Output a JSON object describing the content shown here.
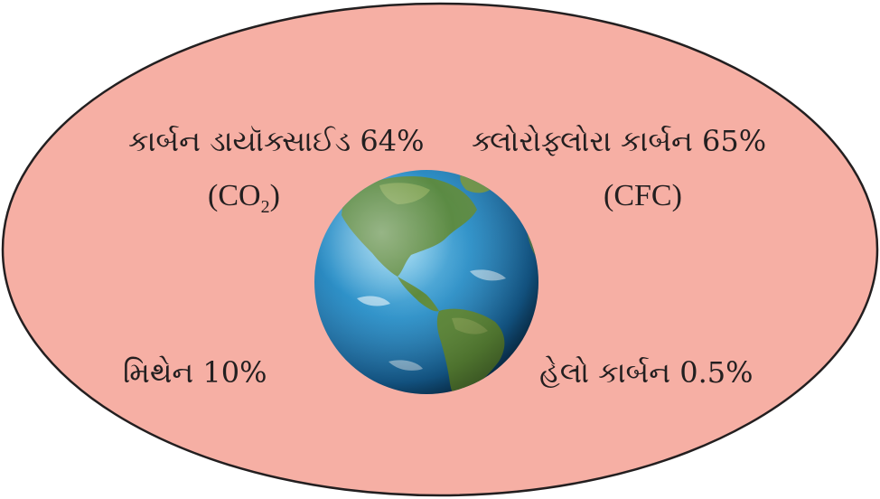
{
  "labels": {
    "co2": "કાર્બન ડાયૉક્સાઈડ 64%",
    "cfc": "ક્લોરોફ્લોરા કાર્બન 65%",
    "methane": "મિથેન 10%",
    "halo_carbon": "હેલો કાર્બન 0.5%"
  },
  "formulas": {
    "co2_open": "(CO",
    "co2_sub": "2",
    "co2_close": ")",
    "cfc": "(CFC)"
  },
  "colors": {
    "ellipse_fill": "#f6afa4",
    "ellipse_stroke": "#231f20",
    "ocean": "#1f7fb8",
    "land": "#5e8a3c"
  },
  "icons": {
    "center": "earth-globe-icon"
  }
}
